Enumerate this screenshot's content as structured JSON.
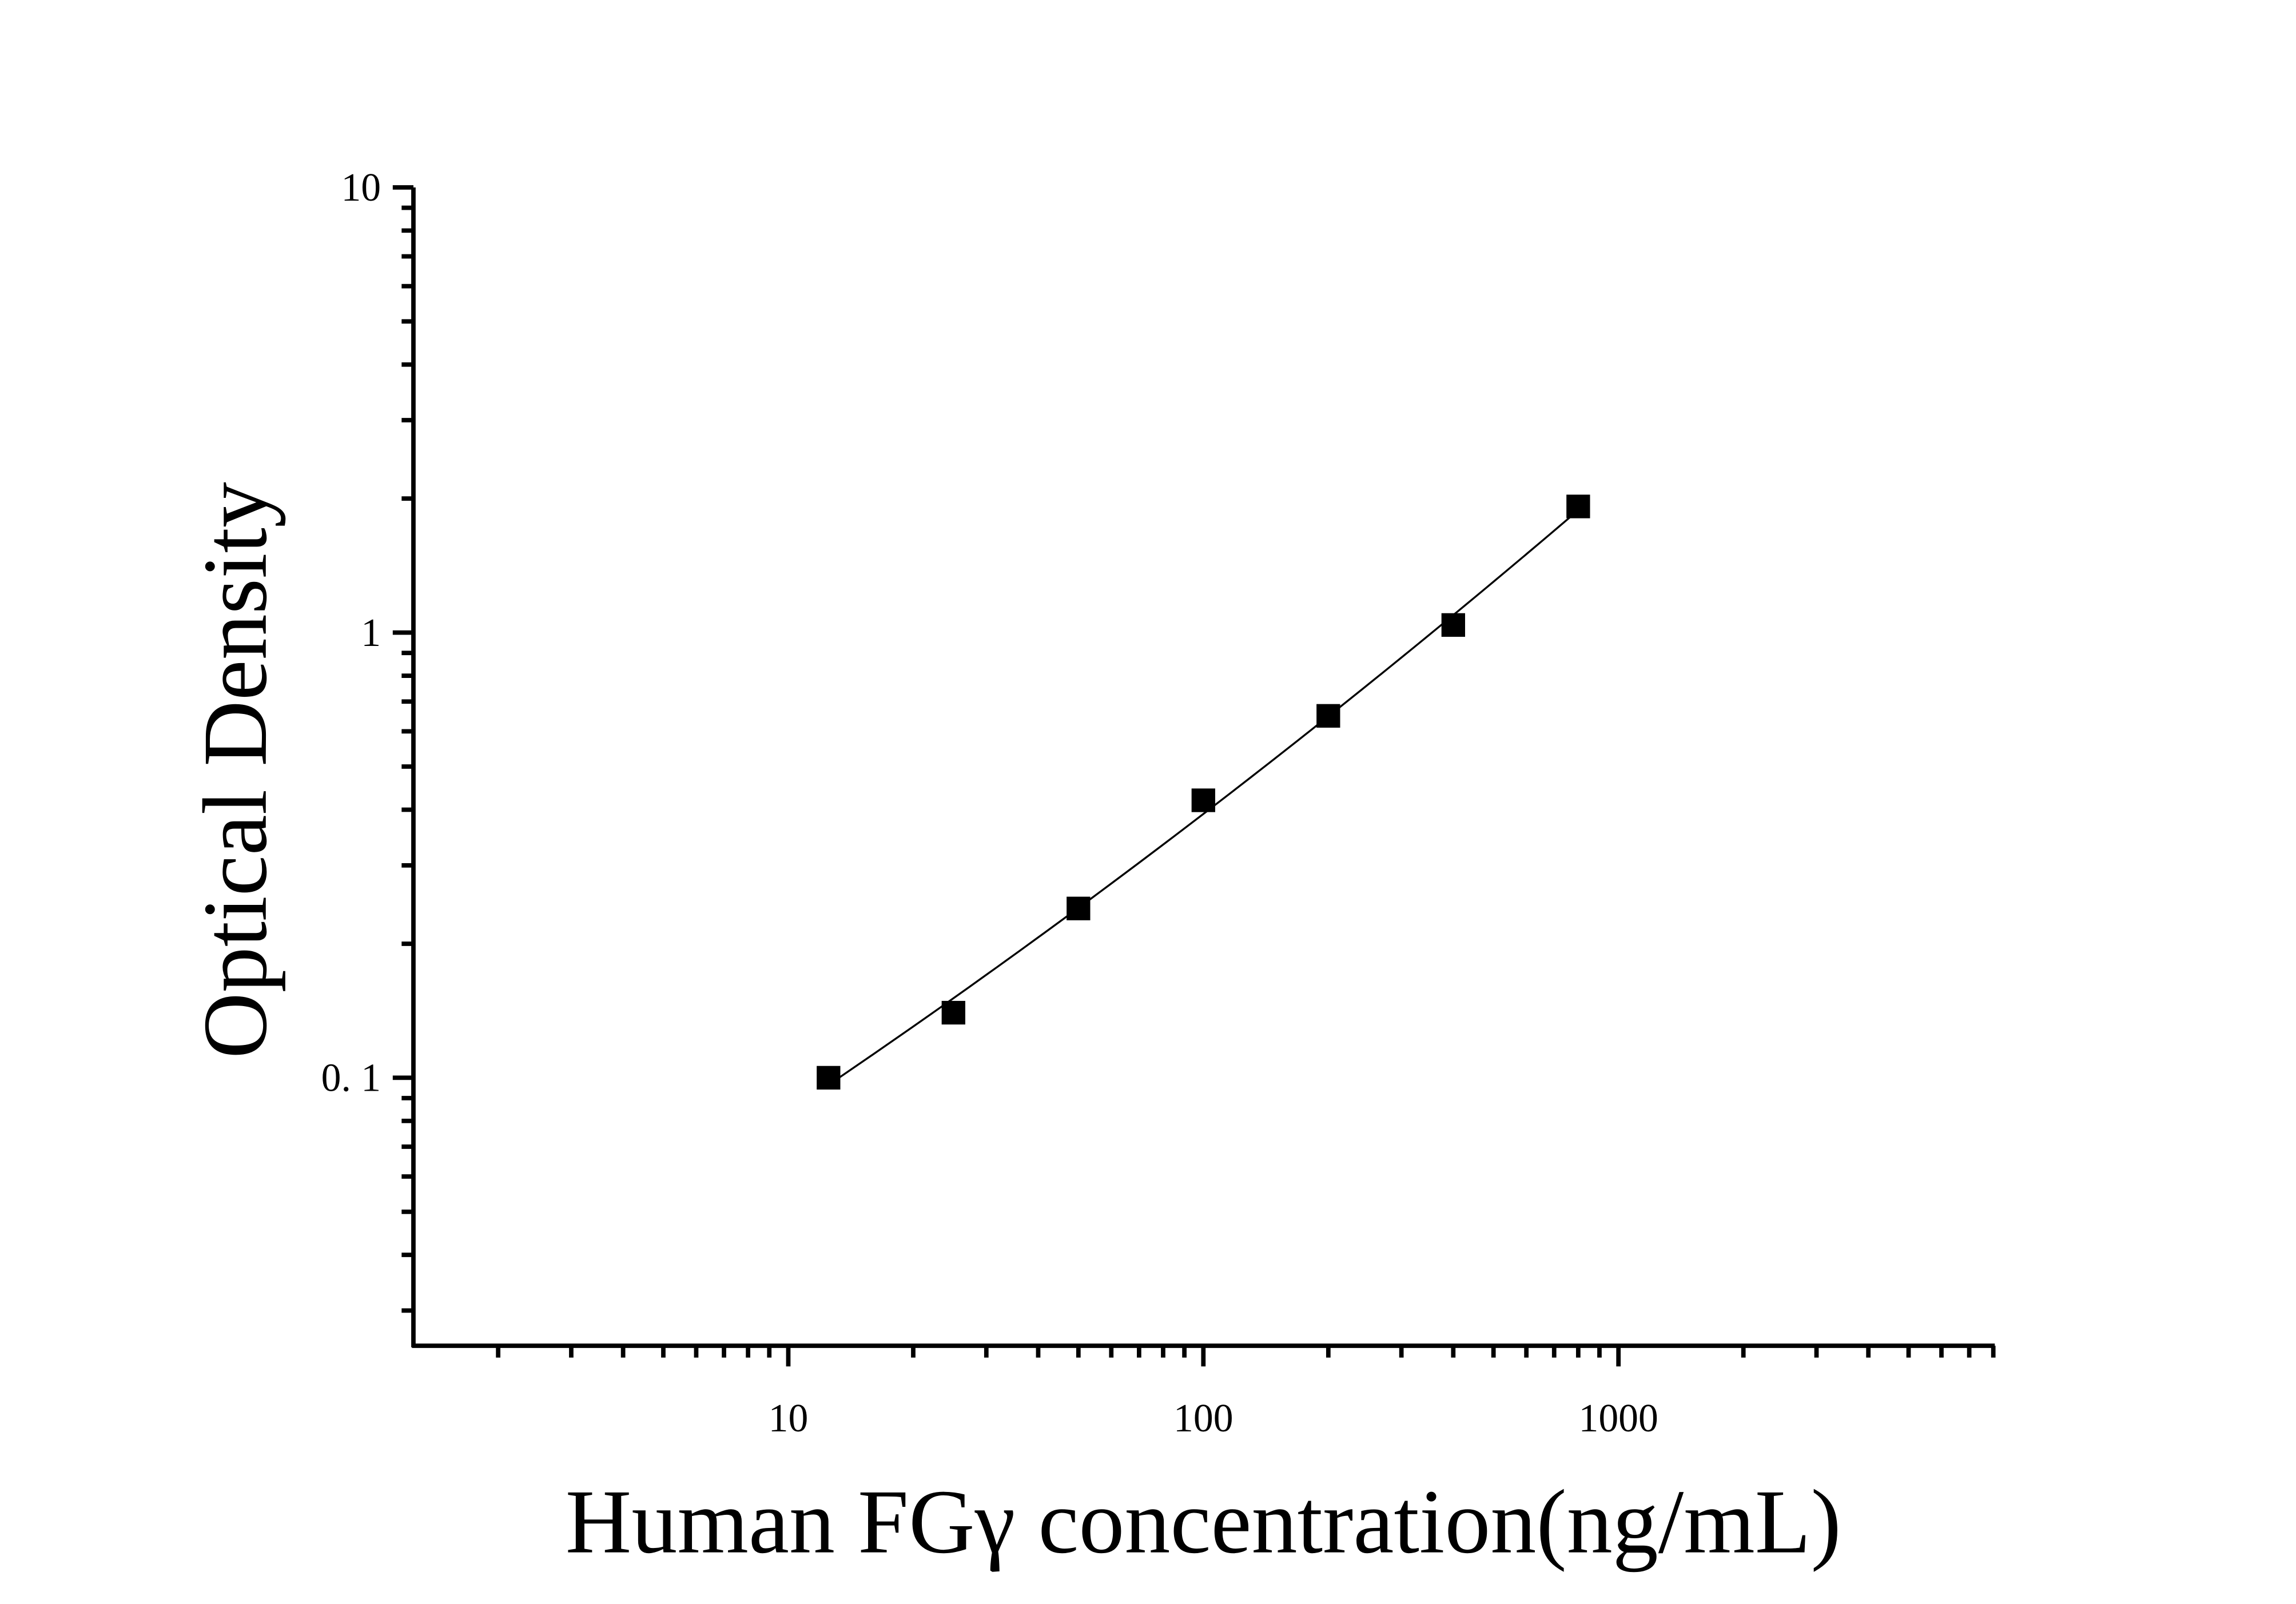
{
  "chart_data": {
    "type": "scatter",
    "title": "",
    "xlabel": "Human FGγ concentration(ng/mL)",
    "ylabel": "Optical Density",
    "x_scale": "log",
    "y_scale": "log",
    "xlim": [
      1.25,
      8000
    ],
    "ylim": [
      0.025,
      10
    ],
    "x_ticks": [
      10,
      100,
      1000
    ],
    "x_tick_labels": [
      "10",
      "100",
      "1000"
    ],
    "y_ticks": [
      0.1,
      1,
      10
    ],
    "y_tick_labels": [
      "0. 1",
      "1",
      "10"
    ],
    "grid": false,
    "marker": "square",
    "fit_curve": true,
    "colors": {
      "marker": "#000000",
      "line": "#000000",
      "axis": "#000000"
    },
    "series": [
      {
        "x": [
          12.5,
          25,
          50,
          100,
          200,
          400,
          800
        ],
        "y": [
          0.1,
          0.14,
          0.24,
          0.42,
          0.65,
          1.04,
          1.92
        ]
      }
    ]
  }
}
